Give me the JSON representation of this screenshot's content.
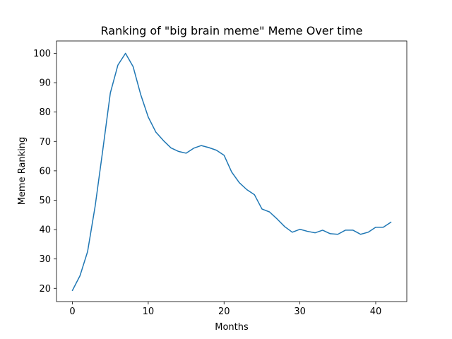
{
  "chart_data": {
    "type": "line",
    "title": "Ranking of \"big brain meme\" Meme Over time",
    "xlabel": "Months",
    "ylabel": "Meme Ranking",
    "xlim": [
      -2.1,
      44.1
    ],
    "ylim": [
      15.5,
      104.2
    ],
    "xticks": [
      0,
      10,
      20,
      30,
      40
    ],
    "yticks": [
      20,
      30,
      40,
      50,
      60,
      70,
      80,
      90,
      100
    ],
    "grid": false,
    "legend": "none",
    "series": [
      {
        "color": "#1f77b4",
        "x": [
          0,
          1,
          2,
          3,
          4,
          5,
          6,
          7,
          8,
          9,
          10,
          11,
          12,
          13,
          14,
          15,
          16,
          17,
          18,
          19,
          20,
          21,
          22,
          23,
          24,
          25,
          26,
          27,
          28,
          29,
          30,
          31,
          32,
          33,
          34,
          35,
          36,
          37,
          38,
          39,
          40,
          41,
          42
        ],
        "y": [
          19.3,
          24.3,
          32.5,
          48,
          67,
          86.5,
          96,
          100,
          95.5,
          86,
          78.3,
          73.2,
          70.3,
          67.8,
          66.6,
          66,
          67.7,
          68.6,
          67.9,
          67,
          65.3,
          59.6,
          56,
          53.6,
          51.9,
          47,
          46,
          43.6,
          41,
          39.1,
          40.1,
          39.4,
          38.9,
          39.8,
          38.6,
          38.4,
          39.8,
          39.8,
          38.4,
          39.1,
          40.8,
          40.8,
          42.5
        ]
      }
    ]
  }
}
